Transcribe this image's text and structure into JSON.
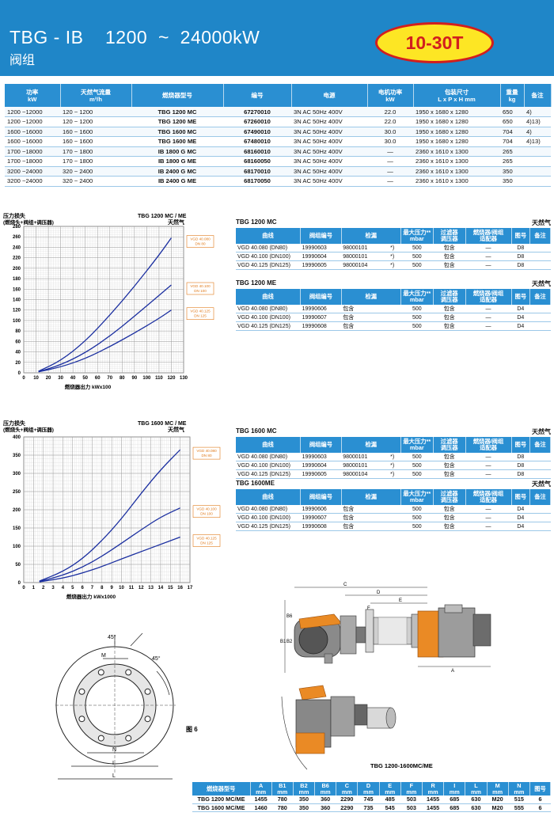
{
  "header": {
    "title": "TBG - IB    1200  ~  24000kW",
    "subtitle": "阀组",
    "badge": "10-30T"
  },
  "main_table": {
    "headers": [
      {
        "l1": "功率",
        "l2": "kW"
      },
      {
        "l1": "天然气流量",
        "l2": "m³/h"
      },
      {
        "l1": "燃烧器型号",
        "l2": ""
      },
      {
        "l1": "编号",
        "l2": ""
      },
      {
        "l1": "电源",
        "l2": ""
      },
      {
        "l1": "电机功率",
        "l2": "kW"
      },
      {
        "l1": "包装尺寸",
        "l2": "L x P x H  mm"
      },
      {
        "l1": "重量",
        "l2": "kg"
      },
      {
        "l1": "备注",
        "l2": ""
      }
    ],
    "rows": [
      [
        "1200 ~12000",
        "120 ~ 1200",
        "TBG 1200 MC",
        "67270010",
        "3N AC 50Hz 400V",
        "22.0",
        "1950 x 1680 x 1280",
        "650",
        "4)"
      ],
      [
        "1200 ~12000",
        "120 ~ 1200",
        "TBG 1200 ME",
        "67260010",
        "3N AC 50Hz 400V",
        "22.0",
        "1950 x 1680 x 1280",
        "650",
        "4)13)"
      ],
      [
        "1600 ~16000",
        "160 ~ 1600",
        "TBG 1600 MC",
        "67490010",
        "3N AC 50Hz 400V",
        "30.0",
        "1950 x 1680 x 1280",
        "704",
        "4)"
      ],
      [
        "1600 ~16000",
        "160 ~ 1600",
        "TBG 1600 ME",
        "67480010",
        "3N AC 50Hz 400V",
        "30.0",
        "1950 x 1680 x 1280",
        "704",
        "4)13)"
      ],
      [
        "1700 ~18000",
        "170 ~ 1800",
        "IB 1800 G MC",
        "68160010",
        "3N AC 50Hz 400V",
        "—",
        "2360 x 1610 x 1300",
        "265",
        ""
      ],
      [
        "1700 ~18000",
        "170 ~ 1800",
        "IB 1800 G ME",
        "68160050",
        "3N AC 50Hz 400V",
        "—",
        "2360 x 1610 x 1300",
        "265",
        ""
      ],
      [
        "3200 ~24000",
        "320 ~ 2400",
        "IB 2400 G MC",
        "68170010",
        "3N AC 50Hz 400V",
        "—",
        "2360 x 1610 x 1300",
        "350",
        ""
      ],
      [
        "3200 ~24000",
        "320 ~ 2400",
        "IB 2400 G ME",
        "68170050",
        "3N AC 50Hz 400V",
        "—",
        "2360 x 1610 x 1300",
        "350",
        ""
      ]
    ]
  },
  "sub_table_headers": [
    "曲线",
    "阀组编号",
    "检漏",
    "最大压力**\nmbar",
    "过滤器\n调压器",
    "燃烧器/阀组\n适配器",
    "图号",
    "备注"
  ],
  "sub_tables": [
    {
      "title": "TBG 1200 MC",
      "gas": "天然气",
      "rows": [
        [
          "VGD 40.080   (DN80)",
          "19990603",
          "98000101",
          "*)",
          "500",
          "包含",
          "—",
          "D8",
          ""
        ],
        [
          "VGD 40.100   (DN100)",
          "19990604",
          "98000101",
          "*)",
          "500",
          "包含",
          "—",
          "D8",
          ""
        ],
        [
          "VGD 40.125   (DN125)",
          "19990605",
          "98000104",
          "*)",
          "500",
          "包含",
          "—",
          "D8",
          ""
        ]
      ]
    },
    {
      "title": "TBG 1200 ME",
      "gas": "天然气",
      "rows": [
        [
          "VGD 40.080   (DN80)",
          "19990606",
          "包含",
          "",
          "500",
          "包含",
          "—",
          "D4",
          ""
        ],
        [
          "VGD 40.100   (DN100)",
          "19990607",
          "包含",
          "",
          "500",
          "包含",
          "—",
          "D4",
          ""
        ],
        [
          "VGD 40.125   (DN125)",
          "19990608",
          "包含",
          "",
          "500",
          "包含",
          "—",
          "D4",
          ""
        ]
      ]
    },
    {
      "title": "TBG 1600 MC",
      "gas": "天然气",
      "rows": [
        [
          "VGD 40.080   (DN80)",
          "19990603",
          "98000101",
          "*)",
          "500",
          "包含",
          "—",
          "D8",
          ""
        ],
        [
          "VGD 40.100   (DN100)",
          "19990604",
          "98000101",
          "*)",
          "500",
          "包含",
          "—",
          "D8",
          ""
        ],
        [
          "VGD 40.125   (DN125)",
          "19990605",
          "98000104",
          "*)",
          "500",
          "包含",
          "—",
          "D8",
          ""
        ]
      ]
    },
    {
      "title": "TBG 1600ME",
      "gas": "天然气",
      "rows": [
        [
          "VGD 40.080   (DN80)",
          "19990606",
          "包含",
          "",
          "500",
          "包含",
          "—",
          "D4",
          ""
        ],
        [
          "VGD 40.100   (DN100)",
          "19990607",
          "包含",
          "",
          "500",
          "包含",
          "—",
          "D4",
          ""
        ],
        [
          "VGD 40.125   (DN125)",
          "19990608",
          "包含",
          "",
          "500",
          "包含",
          "—",
          "D4",
          ""
        ]
      ]
    }
  ],
  "chart_data": [
    {
      "type": "line",
      "title": "TBG 1200 MC / ME",
      "subtitle": "天然气",
      "ylabel": "压力损失",
      "ylabel2": "(燃烧头+阀组+调压器)",
      "xlabel": "燃烧器出力  kWx100",
      "xlim": [
        0,
        130
      ],
      "ylim": [
        0,
        280
      ],
      "xticks": [
        0,
        10,
        20,
        30,
        40,
        50,
        60,
        70,
        80,
        90,
        100,
        110,
        120,
        130
      ],
      "yticks": [
        0,
        20,
        40,
        60,
        80,
        100,
        120,
        140,
        160,
        180,
        200,
        220,
        240,
        260,
        280
      ],
      "series": [
        {
          "name": "VGD 40.080 DN 80",
          "x": [
            12,
            30,
            50,
            70,
            90,
            110,
            120
          ],
          "y": [
            3,
            23,
            60,
            110,
            165,
            225,
            258
          ]
        },
        {
          "name": "VGD 40.100 DN 100",
          "x": [
            12,
            30,
            50,
            70,
            90,
            110,
            120
          ],
          "y": [
            2,
            15,
            38,
            70,
            108,
            148,
            168
          ]
        },
        {
          "name": "VGD 40.125 DN 125",
          "x": [
            12,
            30,
            50,
            70,
            90,
            110,
            120
          ],
          "y": [
            2,
            11,
            27,
            50,
            76,
            104,
            120
          ]
        }
      ]
    },
    {
      "type": "line",
      "title": "TBG 1600 MC / ME",
      "subtitle": "天然气",
      "ylabel": "压力损失",
      "ylabel2": "(燃烧头+阀组+调压器)",
      "xlabel": "燃烧器出力  kWx1000",
      "xlim": [
        0,
        17
      ],
      "ylim": [
        0,
        400
      ],
      "xticks": [
        0,
        1,
        2,
        3,
        4,
        5,
        6,
        7,
        8,
        9,
        10,
        11,
        12,
        13,
        14,
        15,
        16,
        17
      ],
      "yticks": [
        0,
        50,
        100,
        150,
        200,
        250,
        300,
        350,
        400
      ],
      "series": [
        {
          "name": "VGD 40.080 DN 80",
          "x": [
            1.6,
            4,
            6,
            8,
            10,
            12,
            14,
            16
          ],
          "y": [
            4,
            30,
            65,
            115,
            175,
            245,
            310,
            365
          ]
        },
        {
          "name": "VGD 40.100 DN 100",
          "x": [
            1.6,
            4,
            6,
            8,
            10,
            12,
            14,
            16
          ],
          "y": [
            3,
            20,
            42,
            72,
            108,
            145,
            180,
            205
          ]
        },
        {
          "name": "VGD 40.125 DN 125",
          "x": [
            1.6,
            4,
            6,
            8,
            10,
            12,
            14,
            16
          ],
          "y": [
            2,
            12,
            26,
            44,
            65,
            85,
            105,
            125
          ]
        }
      ]
    }
  ],
  "figures": {
    "flange_label": "图 6",
    "flange_dims": [
      "45°",
      "45°",
      "M",
      "N",
      "I",
      "L"
    ],
    "machine_caption": "TBG  1200-1600MC/ME",
    "machine_dims": [
      "C",
      "D",
      "E",
      "F",
      "R",
      "B1",
      "B2",
      "B6",
      "A"
    ]
  },
  "dim_table": {
    "headers": [
      "燃烧器型号",
      "A\nmm",
      "B1\nmm",
      "B2\nmm",
      "B6\nmm",
      "C\nmm",
      "D\nmm",
      "E\nmm",
      "F\nmm",
      "R\nmm",
      "I\nmm",
      "L\nmm",
      "M\nmm",
      "N\nmm",
      "图号"
    ],
    "rows": [
      [
        "TBG  1200 MC/ME",
        "1455",
        "780",
        "350",
        "360",
        "2290",
        "745",
        "485",
        "503",
        "1455",
        "685",
        "630",
        "M20",
        "515",
        "6"
      ],
      [
        "TBG  1600 MC/ME",
        "1460",
        "780",
        "350",
        "360",
        "2290",
        "735",
        "545",
        "503",
        "1455",
        "685",
        "630",
        "M20",
        "555",
        "6"
      ]
    ]
  },
  "colors": {
    "header_blue": "#1f86c8",
    "table_header_blue": "#2a8fd2",
    "curve_blue": "#1b2fa0",
    "label_orange": "#e07a1a",
    "badge_yellow": "#fde624",
    "badge_red": "#d21e1e"
  }
}
